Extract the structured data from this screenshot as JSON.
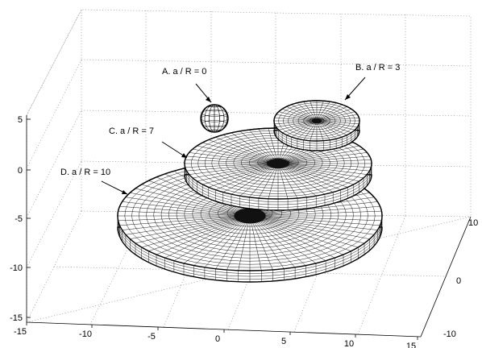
{
  "chart_data": {
    "type": "3d-surface",
    "title": "",
    "xlabel": "",
    "ylabel": "",
    "zlabel": "",
    "axes": {
      "x_ticks": [
        "-15",
        "-10",
        "-5",
        "0",
        "5",
        "10",
        "15"
      ],
      "y_ticks": [
        "-10",
        "0",
        "10"
      ],
      "z_ticks": [
        "5",
        "0",
        "-5",
        "-10",
        "-15"
      ],
      "xlim": [
        -15,
        15
      ],
      "ylim": [
        -10,
        10
      ],
      "zlim": [
        -15,
        5
      ],
      "grid": true
    },
    "surfaces": [
      {
        "id": "A",
        "label": "A.  a / R = 0",
        "a_over_R": 0
      },
      {
        "id": "B",
        "label": "B.  a / R = 3",
        "a_over_R": 3
      },
      {
        "id": "C",
        "label": "C.  a / R = 7",
        "a_over_R": 7
      },
      {
        "id": "D",
        "label": "D.  a / R = 10",
        "a_over_R": 10
      }
    ],
    "colors": {
      "mesh": "#000000",
      "face": "#ffffff",
      "grid": "#777777"
    }
  }
}
